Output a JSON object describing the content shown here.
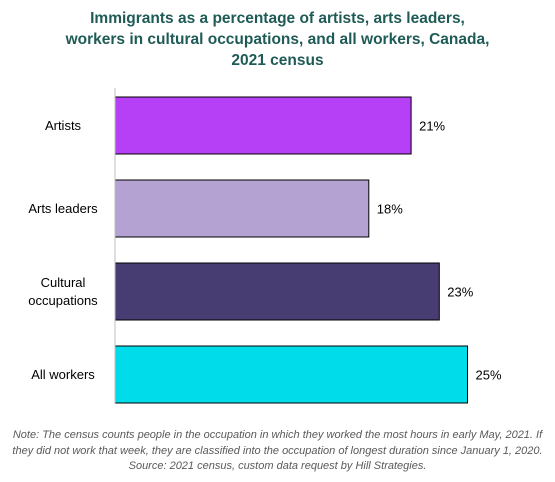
{
  "chart_data": {
    "type": "bar",
    "orientation": "horizontal",
    "title_lines": [
      "Immigrants as a percentage of artists, arts leaders,",
      "workers in cultural occupations, and all workers, Canada,",
      "2021 census"
    ],
    "categories": [
      "Artists",
      "Arts leaders",
      "Cultural occupations",
      "All workers"
    ],
    "category_label_lines": [
      [
        "Artists"
      ],
      [
        "Arts leaders"
      ],
      [
        "Cultural",
        "occupations"
      ],
      [
        "All workers"
      ]
    ],
    "values": [
      21,
      18,
      23,
      25
    ],
    "data_labels": [
      "21%",
      "18%",
      "23%",
      "25%"
    ],
    "bar_colors": [
      "#b540f5",
      "#b3a2d2",
      "#483d72",
      "#00dcea"
    ],
    "xlim": [
      0,
      30
    ],
    "grid": false,
    "legend": false,
    "note": "Note: The census counts people in the occupation in which they worked the most hours in early May, 2021.  If they did not work that week, they are classified into the occupation of longest duration since January 1, 2020.  Source: 2021  census, custom data request by Hill Strategies."
  }
}
